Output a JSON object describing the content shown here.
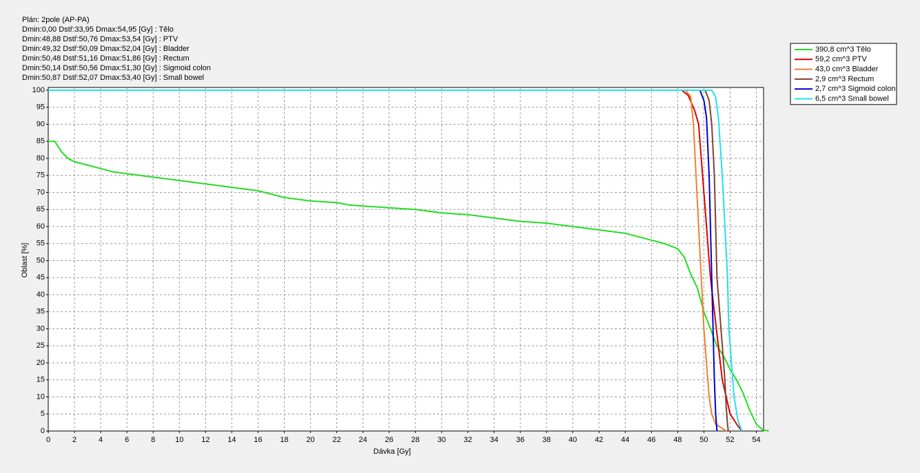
{
  "chart_data": {
    "type": "line",
    "title": "Plán: 2pole (AP-PA)",
    "stats": [
      "Dmin:0,00 Dstř:33,95 Dmax:54,95 [Gy] : Tělo",
      "Dmin:48,88 Dstř:50,76 Dmax:53,54 [Gy] : PTV",
      "Dmin:49,32 Dstř:50,09 Dmax:52,04 [Gy] : Bladder",
      "Dmin:50,48 Dstř:51,16 Dmax:51,86 [Gy] : Rectum",
      "Dmin:50,14 Dstř:50,56 Dmax:51,30 [Gy] : Sigmoid colon",
      "Dmin:50,87 Dstř:52,07 Dmax:53,40 [Gy] : Small bowel"
    ],
    "x_label": "Dávka [Gy]",
    "y_label": "Oblast [%]",
    "xlim": [
      0,
      54.55
    ],
    "ylim": [
      0,
      100
    ],
    "xticks": [
      0,
      2,
      4,
      6,
      8,
      10,
      12,
      14,
      16,
      18,
      20,
      22,
      24,
      26,
      28,
      30,
      32,
      34,
      36,
      38,
      40,
      42,
      44,
      46,
      48,
      50,
      52,
      54
    ],
    "yticks": [
      0,
      5,
      10,
      15,
      20,
      25,
      30,
      35,
      40,
      45,
      50,
      55,
      60,
      65,
      70,
      75,
      80,
      85,
      90,
      95,
      100
    ],
    "grid": true,
    "legend": "top-right",
    "series": [
      {
        "name": "390,8 cm^3 Tělo",
        "color": "#22dd22",
        "x": [
          0,
          0.5,
          1,
          1.5,
          2,
          3,
          4,
          5,
          6,
          8,
          10,
          12,
          14,
          16,
          18,
          20,
          22,
          23,
          24,
          26,
          28,
          30,
          32,
          34,
          36,
          38,
          40,
          42,
          44,
          46,
          47,
          48,
          48.5,
          49,
          49.5,
          50,
          50.5,
          51,
          51.5,
          52,
          52.5,
          53,
          53.5,
          54,
          54.5,
          54.95
        ],
        "values": [
          85,
          85,
          82,
          80,
          79,
          78,
          77,
          76,
          75.5,
          74.5,
          73.5,
          72.5,
          71.5,
          70.5,
          68.5,
          67.5,
          67,
          66.3,
          66,
          65.5,
          65,
          64,
          63.5,
          62.5,
          61.5,
          61,
          60,
          59,
          58,
          56,
          55,
          53.5,
          51,
          46,
          42,
          35,
          30,
          25,
          22,
          18,
          15,
          11,
          6,
          2,
          0.3,
          0
        ]
      },
      {
        "name": "59,2 cm^3 PTV",
        "color": "#dd0000",
        "x": [
          0,
          48.3,
          48.8,
          49.3,
          49.6,
          49.9,
          50.2,
          50.5,
          50.8,
          51.1,
          51.4,
          51.7,
          52,
          52.5,
          52.9
        ],
        "values": [
          100,
          100,
          98.5,
          94,
          90,
          75,
          60,
          45,
          35,
          25,
          15,
          10,
          5,
          2,
          0
        ]
      },
      {
        "name": "43,0 cm^3 Bladder",
        "color": "#f08030",
        "x": [
          0,
          48.6,
          49,
          49.2,
          49.4,
          49.6,
          49.8,
          50,
          50.2,
          50.4,
          50.6,
          50.9,
          51.3,
          51.7
        ],
        "values": [
          100,
          100,
          98,
          90,
          75,
          60,
          45,
          30,
          20,
          10,
          5,
          2,
          1,
          0
        ]
      },
      {
        "name": "2,9 cm^3 Rectum",
        "color": "#804030",
        "x": [
          0,
          50.1,
          50.4,
          50.6,
          50.8,
          50.9,
          51,
          51.2,
          51.4,
          51.6,
          51.7,
          51.8,
          51.86
        ],
        "values": [
          100,
          100,
          97,
          90,
          75,
          60,
          45,
          35,
          25,
          15,
          7,
          2,
          0
        ]
      },
      {
        "name": "2,7 cm^3 Sigmoid colon",
        "color": "#0000cc",
        "x": [
          0,
          49.7,
          50,
          50.2,
          50.4,
          50.5,
          50.6,
          50.7,
          50.8,
          50.9,
          51
        ],
        "values": [
          100,
          100,
          97,
          92,
          75,
          60,
          45,
          30,
          15,
          5,
          0
        ]
      },
      {
        "name": "6,5 cm^3 Small bowel",
        "color": "#22e0e8",
        "x": [
          0,
          50.6,
          50.9,
          51.1,
          51.4,
          51.6,
          51.8,
          51.9,
          52.1,
          52.3,
          52.6,
          52.9
        ],
        "values": [
          100,
          100,
          98,
          92,
          75,
          60,
          45,
          30,
          20,
          10,
          3,
          0
        ]
      }
    ]
  }
}
